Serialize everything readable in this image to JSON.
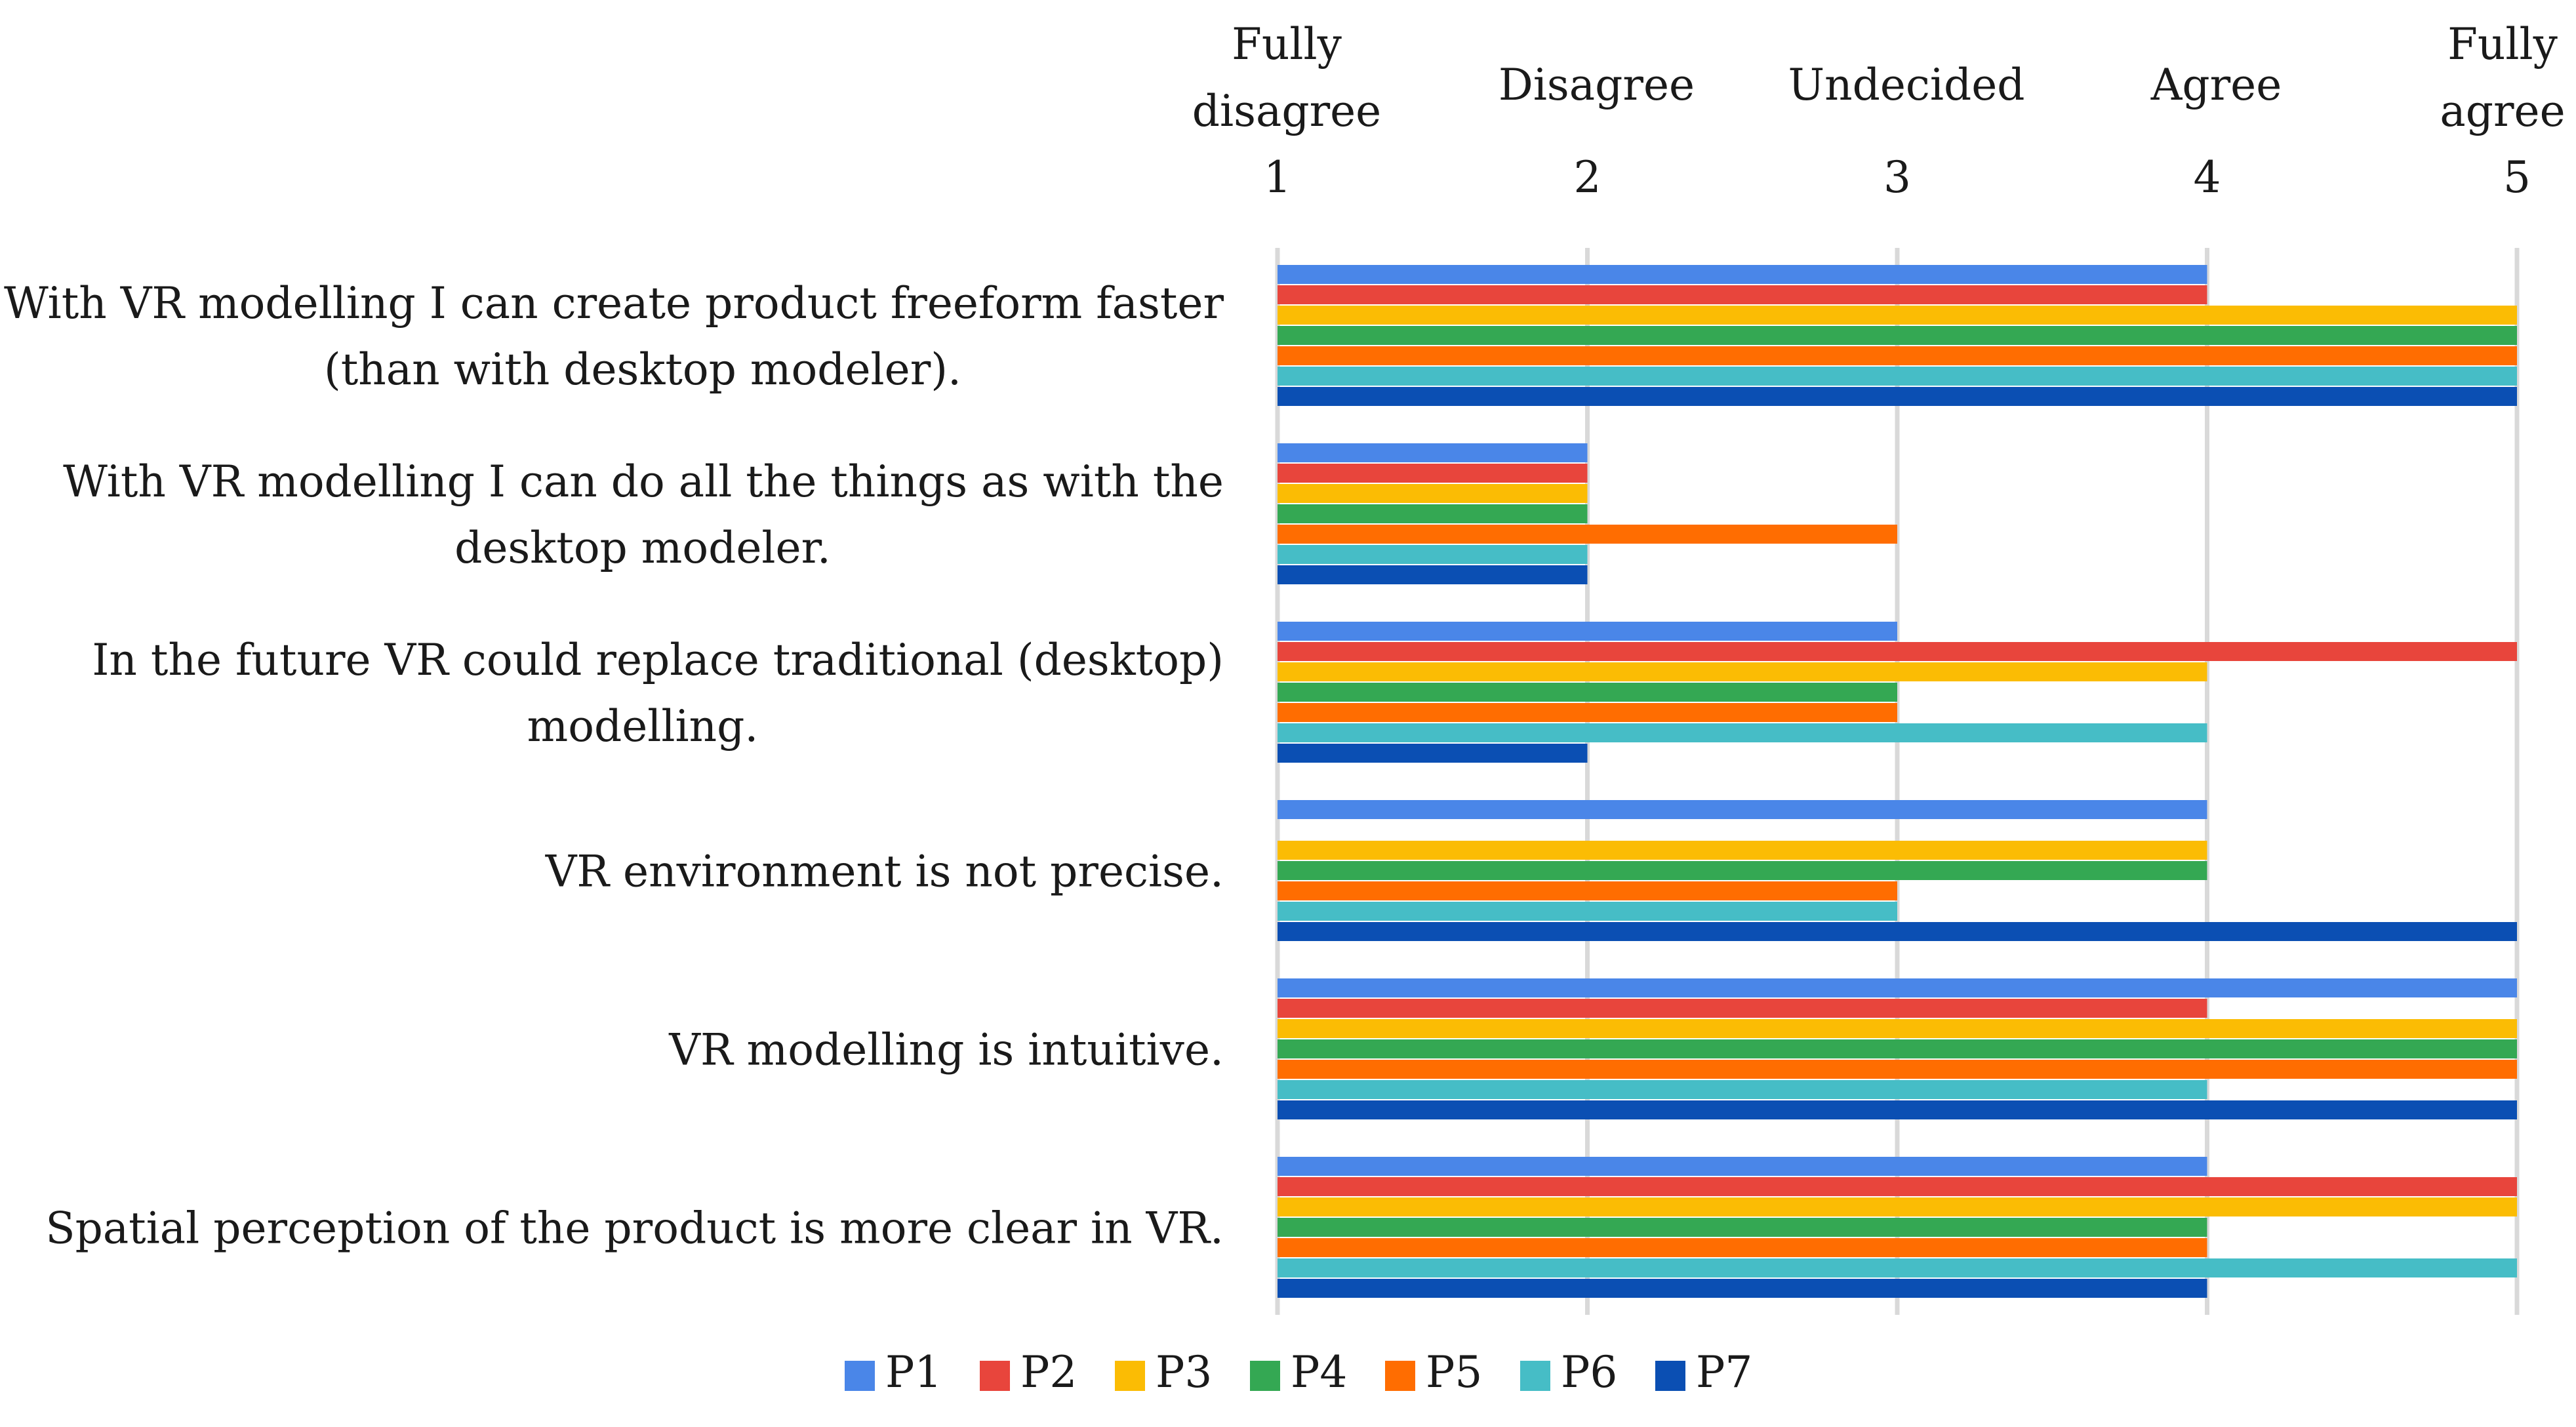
{
  "chart_data": {
    "type": "bar",
    "orientation": "horizontal",
    "title": "",
    "xlabel": "",
    "ylabel": "",
    "xlim": [
      1,
      5
    ],
    "scale_ticks": [
      {
        "value": 1,
        "label_lines": [
          "Fully",
          "disagree"
        ]
      },
      {
        "value": 2,
        "label_lines": [
          "Disagree"
        ]
      },
      {
        "value": 3,
        "label_lines": [
          "Undecided"
        ]
      },
      {
        "value": 4,
        "label_lines": [
          "Agree"
        ]
      },
      {
        "value": 5,
        "label_lines": [
          "Fully",
          "agree"
        ]
      }
    ],
    "categories": [
      {
        "label_lines": [
          "With VR modelling I can create product freeform faster",
          "(than with desktop modeler)."
        ]
      },
      {
        "label_lines": [
          "With VR modelling I can do all the things as with the",
          "desktop modeler."
        ]
      },
      {
        "label_lines": [
          "In the future VR could replace traditional (desktop)",
          "modelling."
        ]
      },
      {
        "label_lines": [
          "VR environment is not precise."
        ]
      },
      {
        "label_lines": [
          "VR modelling is intuitive."
        ]
      },
      {
        "label_lines": [
          "Spatial perception of the product is more clear in VR."
        ]
      }
    ],
    "series": [
      {
        "name": "P1",
        "color": "#4a86e8",
        "values": [
          4,
          2,
          3,
          4,
          5,
          4
        ]
      },
      {
        "name": "P2",
        "color": "#e8453c",
        "values": [
          4,
          2,
          5,
          1,
          4,
          5
        ]
      },
      {
        "name": "P3",
        "color": "#fbbc04",
        "values": [
          5,
          2,
          4,
          4,
          5,
          5
        ]
      },
      {
        "name": "P4",
        "color": "#34a853",
        "values": [
          5,
          2,
          3,
          4,
          5,
          4
        ]
      },
      {
        "name": "P5",
        "color": "#ff6d01",
        "values": [
          5,
          3,
          3,
          3,
          5,
          4
        ]
      },
      {
        "name": "P6",
        "color": "#46bdc6",
        "values": [
          5,
          2,
          4,
          3,
          4,
          5
        ]
      },
      {
        "name": "P7",
        "color": "#0b4fb3",
        "values": [
          5,
          2,
          2,
          5,
          5,
          4
        ]
      }
    ],
    "grid": true,
    "legend": "bottom"
  }
}
